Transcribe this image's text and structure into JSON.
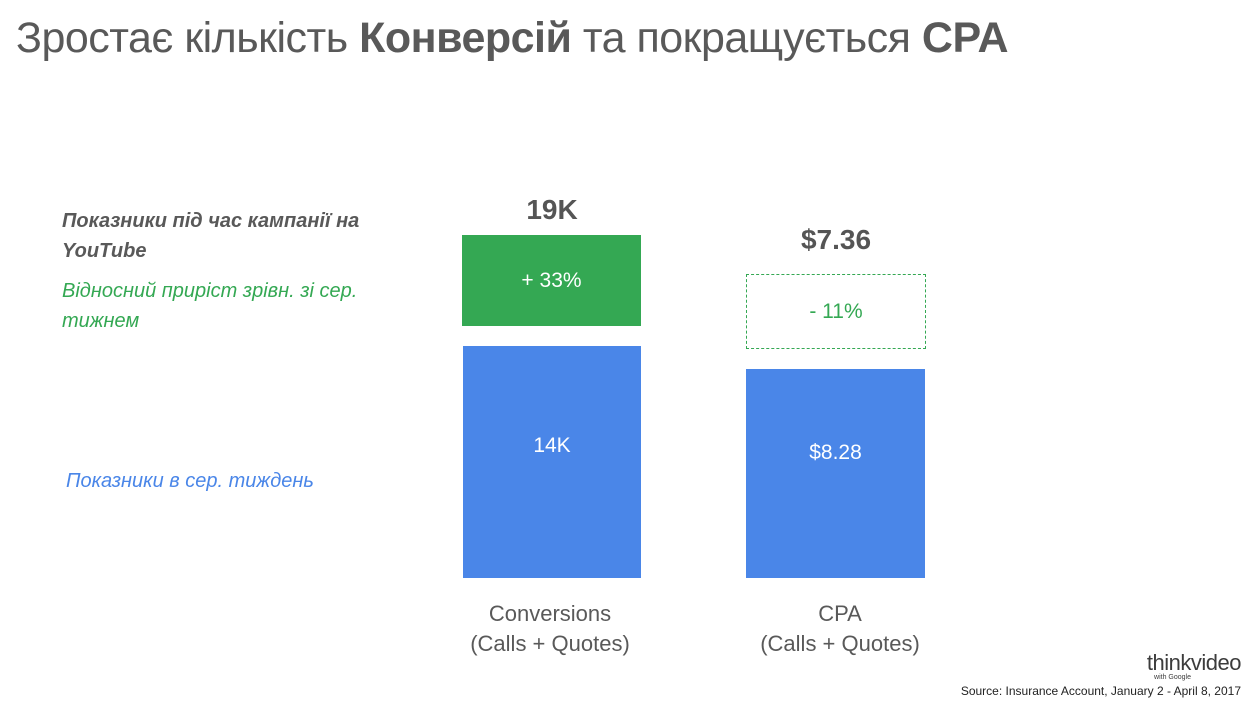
{
  "title": {
    "part1": "Зростає кількість ",
    "bold1": "Конверсій",
    "part2": " та покращується ",
    "bold2": "CPA"
  },
  "legend": {
    "campaign": "Показники під час кампанії на YouTube",
    "growth": "Відносний приріст зрівн. зі сер. тижнем",
    "average": "Показники в сер. тиждень"
  },
  "colors": {
    "average": "#4a86e8",
    "growth": "#34a853",
    "text": "#595959"
  },
  "chart_data": {
    "type": "bar",
    "categories": [
      "Conversions (Calls + Quotes)",
      "CPA (Calls + Quotes)"
    ],
    "series": [
      {
        "name": "Показники в сер. тиждень",
        "values": [
          "14K",
          "$8.28"
        ]
      },
      {
        "name": "Відносний приріст зрівн. зі сер. тижнем",
        "values": [
          "+ 33%",
          "- 11%"
        ]
      },
      {
        "name": "Показники під час кампанії на YouTube",
        "values": [
          "19K",
          "$7.36"
        ]
      }
    ],
    "numeric": {
      "average": [
        14000,
        8.28
      ],
      "change_percent": [
        33,
        -11
      ],
      "campaign": [
        19000,
        7.36
      ]
    },
    "stacked": true,
    "title": "",
    "xlabel": "",
    "ylabel": "",
    "grid": false
  },
  "bars": {
    "conversions": {
      "top_label": "19K",
      "growth_label": "+ 33%",
      "base_label": "14K",
      "cat_line1": "Conversions",
      "cat_line2": "(Calls + Quotes)"
    },
    "cpa": {
      "top_label": "$7.36",
      "growth_label": "- 11%",
      "base_label": "$8.28",
      "cat_line1": "CPA",
      "cat_line2": "(Calls + Quotes)"
    }
  },
  "logo": {
    "main": "thinkvideo",
    "sub": "with Google"
  },
  "source": "Source: Insurance Account, January 2 - April 8,  2017"
}
